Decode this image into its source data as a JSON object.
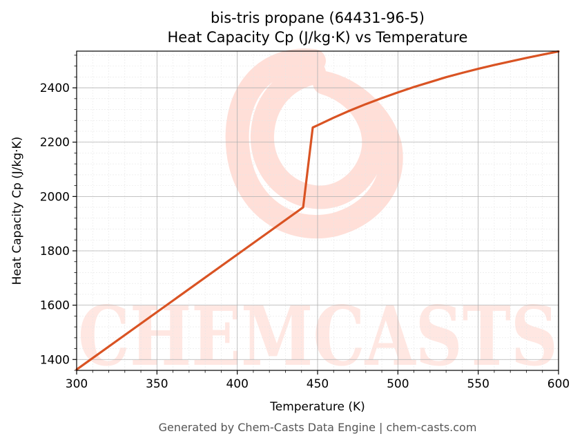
{
  "chart_data": {
    "type": "line",
    "title": "bis-tris propane (64431-96-5)",
    "subtitle": "Heat Capacity Cp (J/kg·K) vs Temperature",
    "xlabel": "Temperature (K)",
    "ylabel": "Heat Capacity Cp (J/kg·K)",
    "xlim": [
      300,
      600
    ],
    "ylim": [
      1360,
      2535
    ],
    "xticks": [
      300,
      350,
      400,
      450,
      500,
      550,
      600
    ],
    "yticks": [
      1400,
      1600,
      1800,
      2000,
      2200,
      2400
    ],
    "grid": true,
    "series": [
      {
        "color": "#d95323",
        "x": [
          300,
          441,
          447,
          450,
          460,
          470,
          480,
          490,
          500,
          510,
          520,
          530,
          540,
          550,
          560,
          570,
          580,
          590,
          600
        ],
        "y": [
          1363,
          1960,
          2254,
          2262,
          2290,
          2316,
          2340,
          2362,
          2383,
          2403,
          2421,
          2439,
          2455,
          2470,
          2484,
          2497,
          2510,
          2522,
          2534
        ]
      }
    ]
  },
  "watermark": {
    "text": "CHEMCASTS",
    "color": "#ffdcd4"
  },
  "footer": "Generated by Chem-Casts Data Engine | chem-casts.com"
}
